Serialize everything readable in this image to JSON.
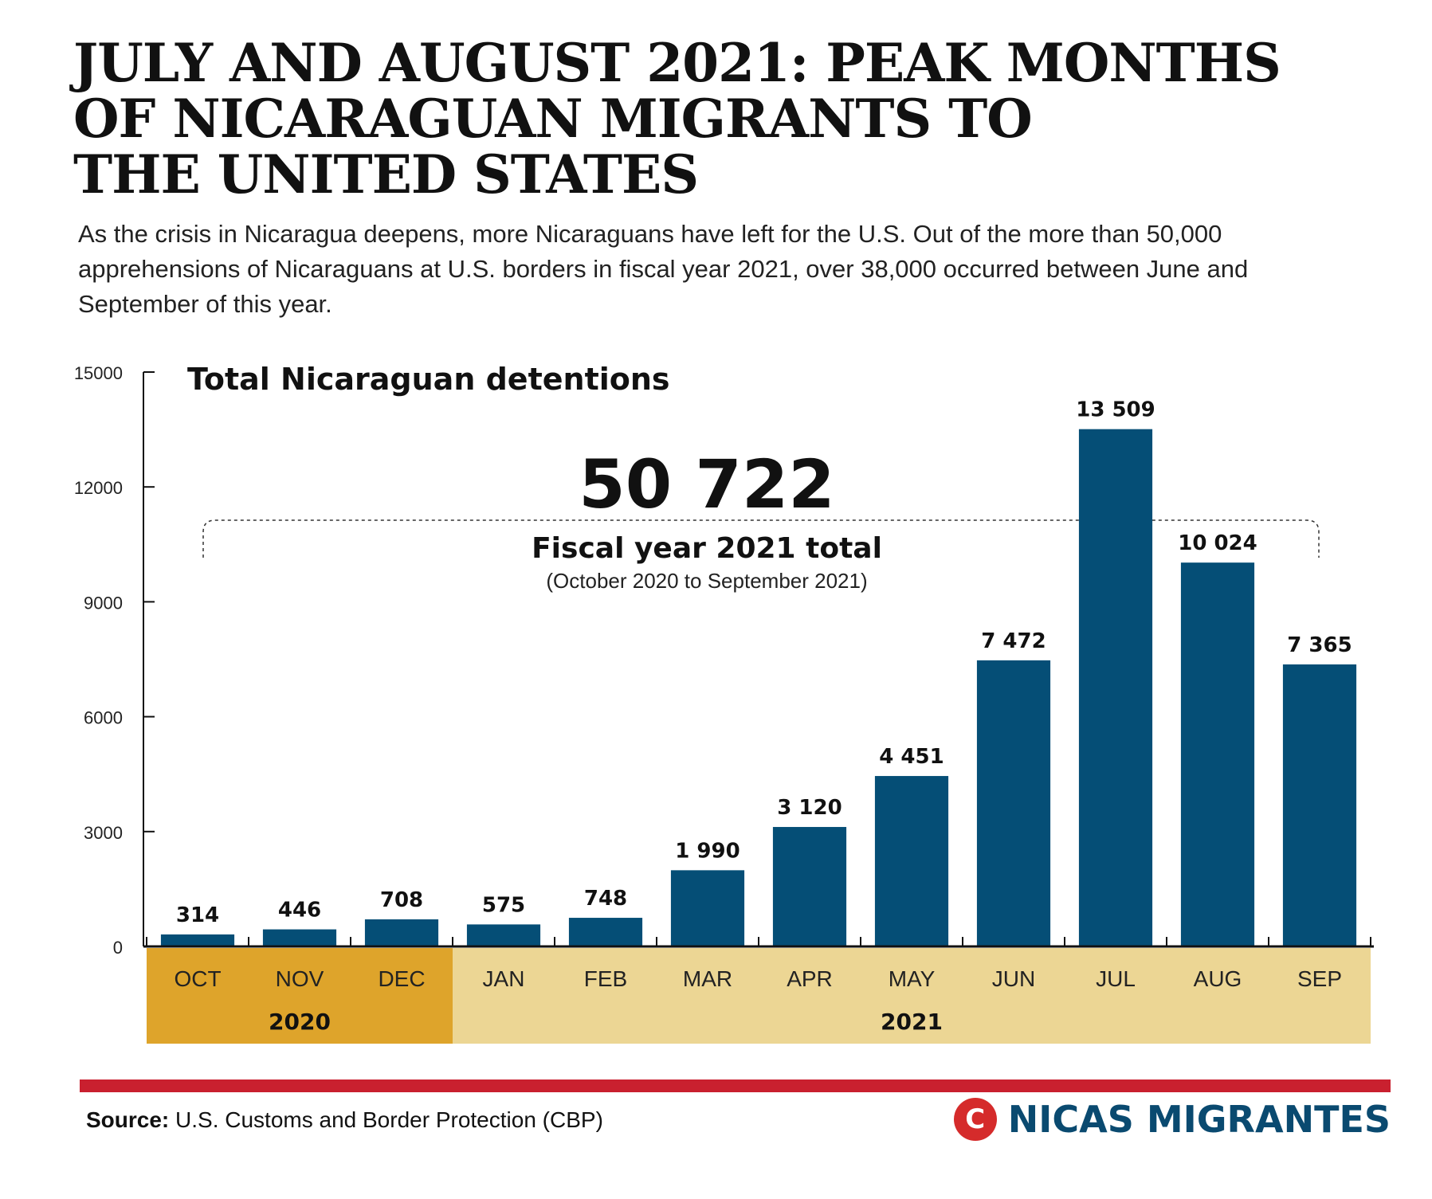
{
  "header": {
    "title_lines": [
      "JULY AND AUGUST 2021: PEAK MONTHS",
      "OF NICARAGUAN MIGRANTS TO",
      "THE UNITED STATES"
    ],
    "subtitle": "As the crisis in Nicaragua deepens, more Nicaraguans have left for the U.S. Out of the more than 50,000 apprehensions of Nicaraguans at U.S. borders in fiscal year 2021, over 38,000 occurred between June and September of this year."
  },
  "annotation": {
    "total": "50 722",
    "label": "Fiscal year 2021 total",
    "sublabel": "(October 2020 to September 2021)"
  },
  "chart_data": {
    "type": "bar",
    "title": "Total Nicaraguan detentions",
    "categories": [
      "OCT",
      "NOV",
      "DEC",
      "JAN",
      "FEB",
      "MAR",
      "APR",
      "MAY",
      "JUN",
      "JUL",
      "AUG",
      "SEP"
    ],
    "values": [
      314,
      446,
      708,
      575,
      748,
      1990,
      3120,
      4451,
      7472,
      13509,
      10024,
      7365
    ],
    "value_labels": [
      "314",
      "446",
      "708",
      "575",
      "748",
      "1 990",
      "3 120",
      "4 451",
      "7 472",
      "13 509",
      "10 024",
      "7 365"
    ],
    "ylim": [
      0,
      15000
    ],
    "yticks": [
      "0",
      "3000",
      "6000",
      "9000",
      "12000",
      "15000"
    ],
    "ytick_values": [
      0,
      3000,
      6000,
      9000,
      12000,
      15000
    ],
    "year_groups": [
      {
        "label": "2020",
        "start": 0,
        "end": 2
      },
      {
        "label": "2021",
        "start": 3,
        "end": 11
      }
    ],
    "grid": false
  },
  "colors": {
    "bar": "#054e76",
    "band_2020": "#dea42b",
    "band_2021": "#ecd694",
    "rule": "#c9202f",
    "brand": "#0a4a70"
  },
  "footer": {
    "source_label": "Source:",
    "source_text": " U.S. Customs and Border Protection (CBP)",
    "brand_mark": "C",
    "brand_name": "NICAS MIGRANTES"
  }
}
